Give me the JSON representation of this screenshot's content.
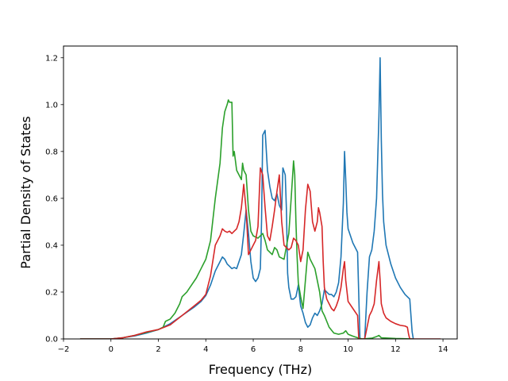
{
  "chart_data": {
    "type": "line",
    "title": "",
    "xlabel": "Frequency (THz)",
    "ylabel": "Partial Density of States",
    "xlim": [
      -2,
      14.6
    ],
    "ylim": [
      0,
      1.25
    ],
    "xticks": [
      -2,
      0,
      2,
      4,
      6,
      8,
      10,
      12,
      14
    ],
    "yticks": [
      0.0,
      0.2,
      0.4,
      0.6,
      0.8,
      1.0,
      1.2
    ],
    "xtick_labels": [
      "−2",
      "0",
      "2",
      "4",
      "6",
      "8",
      "10",
      "12",
      "14"
    ],
    "ytick_labels": [
      "0.0",
      "0.2",
      "0.4",
      "0.6",
      "0.8",
      "1.0",
      "1.2"
    ],
    "grid": false,
    "legend": "none",
    "series": [
      {
        "color": "#1f77b4",
        "points": [
          [
            -1.3,
            0
          ],
          [
            0,
            0
          ],
          [
            0.5,
            0.005
          ],
          [
            1,
            0.013
          ],
          [
            1.5,
            0.025
          ],
          [
            2,
            0.04
          ],
          [
            2.5,
            0.065
          ],
          [
            3,
            0.1
          ],
          [
            3.5,
            0.135
          ],
          [
            3.8,
            0.16
          ],
          [
            4,
            0.185
          ],
          [
            4.2,
            0.23
          ],
          [
            4.4,
            0.29
          ],
          [
            4.6,
            0.33
          ],
          [
            4.7,
            0.35
          ],
          [
            4.8,
            0.34
          ],
          [
            4.9,
            0.32
          ],
          [
            5.0,
            0.31
          ],
          [
            5.1,
            0.3
          ],
          [
            5.2,
            0.305
          ],
          [
            5.3,
            0.3
          ],
          [
            5.4,
            0.33
          ],
          [
            5.5,
            0.36
          ],
          [
            5.6,
            0.45
          ],
          [
            5.7,
            0.55
          ],
          [
            5.8,
            0.45
          ],
          [
            5.9,
            0.33
          ],
          [
            6.0,
            0.26
          ],
          [
            6.1,
            0.245
          ],
          [
            6.2,
            0.26
          ],
          [
            6.3,
            0.3
          ],
          [
            6.35,
            0.5
          ],
          [
            6.4,
            0.87
          ],
          [
            6.5,
            0.89
          ],
          [
            6.6,
            0.72
          ],
          [
            6.7,
            0.65
          ],
          [
            6.8,
            0.6
          ],
          [
            6.9,
            0.59
          ],
          [
            7.0,
            0.62
          ],
          [
            7.1,
            0.57
          ],
          [
            7.2,
            0.55
          ],
          [
            7.25,
            0.73
          ],
          [
            7.35,
            0.7
          ],
          [
            7.4,
            0.55
          ],
          [
            7.45,
            0.28
          ],
          [
            7.5,
            0.22
          ],
          [
            7.6,
            0.17
          ],
          [
            7.7,
            0.17
          ],
          [
            7.8,
            0.18
          ],
          [
            7.9,
            0.23
          ],
          [
            8.0,
            0.14
          ],
          [
            8.1,
            0.11
          ],
          [
            8.2,
            0.07
          ],
          [
            8.3,
            0.05
          ],
          [
            8.4,
            0.06
          ],
          [
            8.5,
            0.09
          ],
          [
            8.6,
            0.11
          ],
          [
            8.7,
            0.1
          ],
          [
            8.8,
            0.12
          ],
          [
            8.9,
            0.15
          ],
          [
            9.0,
            0.21
          ],
          [
            9.1,
            0.2
          ],
          [
            9.2,
            0.19
          ],
          [
            9.3,
            0.19
          ],
          [
            9.4,
            0.18
          ],
          [
            9.5,
            0.2
          ],
          [
            9.6,
            0.24
          ],
          [
            9.7,
            0.35
          ],
          [
            9.8,
            0.58
          ],
          [
            9.85,
            0.8
          ],
          [
            9.9,
            0.68
          ],
          [
            9.95,
            0.54
          ],
          [
            10.0,
            0.47
          ],
          [
            10.2,
            0.41
          ],
          [
            10.4,
            0.37
          ],
          [
            10.5,
            0.0
          ],
          [
            10.7,
            0.0
          ],
          [
            10.8,
            0.2
          ],
          [
            10.9,
            0.35
          ],
          [
            11.0,
            0.38
          ],
          [
            11.1,
            0.46
          ],
          [
            11.2,
            0.6
          ],
          [
            11.3,
            0.95
          ],
          [
            11.35,
            1.2
          ],
          [
            11.4,
            0.85
          ],
          [
            11.45,
            0.62
          ],
          [
            11.5,
            0.5
          ],
          [
            11.6,
            0.4
          ],
          [
            11.8,
            0.32
          ],
          [
            12.0,
            0.26
          ],
          [
            12.2,
            0.22
          ],
          [
            12.4,
            0.19
          ],
          [
            12.6,
            0.17
          ],
          [
            12.7,
            0.03
          ],
          [
            12.75,
            0
          ]
        ]
      },
      {
        "color": "#2ca02c",
        "points": [
          [
            -1.3,
            0
          ],
          [
            0,
            0
          ],
          [
            0.5,
            0.005
          ],
          [
            1,
            0.015
          ],
          [
            1.5,
            0.028
          ],
          [
            2,
            0.04
          ],
          [
            2.2,
            0.05
          ],
          [
            2.3,
            0.075
          ],
          [
            2.5,
            0.085
          ],
          [
            2.7,
            0.11
          ],
          [
            2.9,
            0.15
          ],
          [
            3.0,
            0.18
          ],
          [
            3.2,
            0.2
          ],
          [
            3.4,
            0.23
          ],
          [
            3.6,
            0.26
          ],
          [
            3.8,
            0.3
          ],
          [
            4.0,
            0.34
          ],
          [
            4.2,
            0.42
          ],
          [
            4.4,
            0.6
          ],
          [
            4.6,
            0.75
          ],
          [
            4.7,
            0.9
          ],
          [
            4.8,
            0.97
          ],
          [
            4.9,
            1.0
          ],
          [
            4.95,
            1.02
          ],
          [
            5.0,
            1.01
          ],
          [
            5.1,
            1.01
          ],
          [
            5.15,
            0.78
          ],
          [
            5.2,
            0.8
          ],
          [
            5.3,
            0.72
          ],
          [
            5.4,
            0.7
          ],
          [
            5.5,
            0.68
          ],
          [
            5.55,
            0.75
          ],
          [
            5.6,
            0.72
          ],
          [
            5.7,
            0.7
          ],
          [
            5.8,
            0.55
          ],
          [
            5.9,
            0.46
          ],
          [
            6.0,
            0.44
          ],
          [
            6.2,
            0.43
          ],
          [
            6.4,
            0.45
          ],
          [
            6.5,
            0.42
          ],
          [
            6.6,
            0.38
          ],
          [
            6.8,
            0.36
          ],
          [
            6.9,
            0.39
          ],
          [
            7.0,
            0.38
          ],
          [
            7.1,
            0.35
          ],
          [
            7.3,
            0.34
          ],
          [
            7.5,
            0.45
          ],
          [
            7.6,
            0.6
          ],
          [
            7.7,
            0.76
          ],
          [
            7.75,
            0.7
          ],
          [
            7.8,
            0.5
          ],
          [
            7.85,
            0.35
          ],
          [
            7.9,
            0.24
          ],
          [
            8.0,
            0.18
          ],
          [
            8.1,
            0.13
          ],
          [
            8.2,
            0.25
          ],
          [
            8.3,
            0.37
          ],
          [
            8.4,
            0.34
          ],
          [
            8.6,
            0.3
          ],
          [
            8.8,
            0.2
          ],
          [
            8.9,
            0.12
          ],
          [
            9.0,
            0.1
          ],
          [
            9.2,
            0.05
          ],
          [
            9.4,
            0.025
          ],
          [
            9.6,
            0.02
          ],
          [
            9.8,
            0.025
          ],
          [
            9.9,
            0.035
          ],
          [
            10.0,
            0.02
          ],
          [
            10.2,
            0.012
          ],
          [
            10.4,
            0.005
          ],
          [
            10.6,
            0
          ],
          [
            11.0,
            0.003
          ],
          [
            11.2,
            0.01
          ],
          [
            11.3,
            0.015
          ],
          [
            11.4,
            0.005
          ],
          [
            12.0,
            0.002
          ],
          [
            12.75,
            0
          ]
        ]
      },
      {
        "color": "#d62728",
        "points": [
          [
            -1.3,
            0
          ],
          [
            0,
            0
          ],
          [
            0.5,
            0.005
          ],
          [
            1,
            0.015
          ],
          [
            1.5,
            0.03
          ],
          [
            2,
            0.04
          ],
          [
            2.5,
            0.06
          ],
          [
            3,
            0.1
          ],
          [
            3.5,
            0.14
          ],
          [
            3.8,
            0.165
          ],
          [
            4,
            0.19
          ],
          [
            4.2,
            0.27
          ],
          [
            4.4,
            0.4
          ],
          [
            4.6,
            0.44
          ],
          [
            4.7,
            0.47
          ],
          [
            4.8,
            0.46
          ],
          [
            4.9,
            0.455
          ],
          [
            5.0,
            0.46
          ],
          [
            5.1,
            0.45
          ],
          [
            5.2,
            0.46
          ],
          [
            5.3,
            0.47
          ],
          [
            5.4,
            0.5
          ],
          [
            5.5,
            0.56
          ],
          [
            5.6,
            0.66
          ],
          [
            5.7,
            0.55
          ],
          [
            5.8,
            0.36
          ],
          [
            5.9,
            0.38
          ],
          [
            6.0,
            0.4
          ],
          [
            6.1,
            0.42
          ],
          [
            6.2,
            0.48
          ],
          [
            6.3,
            0.73
          ],
          [
            6.4,
            0.7
          ],
          [
            6.5,
            0.56
          ],
          [
            6.6,
            0.44
          ],
          [
            6.7,
            0.42
          ],
          [
            6.8,
            0.48
          ],
          [
            6.9,
            0.55
          ],
          [
            7.0,
            0.63
          ],
          [
            7.1,
            0.7
          ],
          [
            7.15,
            0.6
          ],
          [
            7.2,
            0.5
          ],
          [
            7.3,
            0.4
          ],
          [
            7.4,
            0.39
          ],
          [
            7.5,
            0.38
          ],
          [
            7.6,
            0.39
          ],
          [
            7.7,
            0.43
          ],
          [
            7.8,
            0.42
          ],
          [
            7.9,
            0.4
          ],
          [
            8.0,
            0.33
          ],
          [
            8.1,
            0.38
          ],
          [
            8.2,
            0.55
          ],
          [
            8.3,
            0.66
          ],
          [
            8.4,
            0.63
          ],
          [
            8.5,
            0.5
          ],
          [
            8.6,
            0.46
          ],
          [
            8.7,
            0.5
          ],
          [
            8.75,
            0.56
          ],
          [
            8.8,
            0.54
          ],
          [
            8.9,
            0.48
          ],
          [
            8.95,
            0.33
          ],
          [
            9.0,
            0.22
          ],
          [
            9.1,
            0.17
          ],
          [
            9.2,
            0.15
          ],
          [
            9.3,
            0.13
          ],
          [
            9.4,
            0.12
          ],
          [
            9.5,
            0.14
          ],
          [
            9.6,
            0.17
          ],
          [
            9.7,
            0.22
          ],
          [
            9.8,
            0.3
          ],
          [
            9.85,
            0.33
          ],
          [
            9.9,
            0.25
          ],
          [
            10.0,
            0.16
          ],
          [
            10.2,
            0.13
          ],
          [
            10.4,
            0.1
          ],
          [
            10.45,
            0.0
          ],
          [
            10.7,
            0.0
          ],
          [
            10.8,
            0.05
          ],
          [
            10.9,
            0.1
          ],
          [
            11.0,
            0.12
          ],
          [
            11.1,
            0.15
          ],
          [
            11.2,
            0.25
          ],
          [
            11.3,
            0.33
          ],
          [
            11.35,
            0.25
          ],
          [
            11.4,
            0.15
          ],
          [
            11.5,
            0.11
          ],
          [
            11.6,
            0.09
          ],
          [
            11.8,
            0.075
          ],
          [
            12.0,
            0.065
          ],
          [
            12.2,
            0.058
          ],
          [
            12.4,
            0.055
          ],
          [
            12.5,
            0.05
          ],
          [
            12.55,
            0.02
          ],
          [
            12.6,
            0.0
          ],
          [
            13.9,
            0
          ]
        ]
      }
    ]
  }
}
